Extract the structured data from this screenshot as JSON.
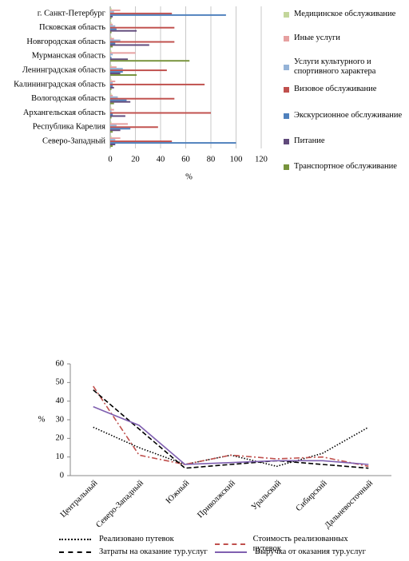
{
  "chart_data": [
    {
      "type": "hbar",
      "xlabel": "%",
      "categories": [
        "г. Санкт-Петербург",
        "Псковская область",
        "Новгородская область",
        "Мурманская область",
        "Ленинградская область",
        "Калининградская область",
        "Вологодская область",
        "Архангельская область",
        "Республика Карелия",
        "Северо-Западный"
      ],
      "series": [
        {
          "name": "Медицинское обслуживание",
          "color": "#c3d69b",
          "values": [
            1,
            1,
            1,
            1,
            1,
            1,
            1,
            1,
            1,
            1
          ]
        },
        {
          "name": "Иные услуги",
          "color": "#e6a0a0",
          "values": [
            8,
            2,
            3,
            20,
            5,
            4,
            2,
            3,
            14,
            8
          ]
        },
        {
          "name": "Услуги культурного и спортивного характера",
          "color": "#95b3d7",
          "values": [
            3,
            4,
            8,
            2,
            10,
            2,
            6,
            1,
            5,
            4
          ]
        },
        {
          "name": "Визовое обслуживание",
          "color": "#c0504d",
          "values": [
            49,
            51,
            51,
            0,
            45,
            75,
            51,
            80,
            38,
            49
          ]
        },
        {
          "name": "Экскурсионное обслуживание",
          "color": "#4f81bd",
          "values": [
            92,
            5,
            4,
            1,
            10,
            2,
            13,
            2,
            16,
            100
          ]
        },
        {
          "name": "Питание",
          "color": "#604a7b",
          "values": [
            2,
            21,
            31,
            14,
            8,
            3,
            16,
            12,
            8,
            4
          ]
        },
        {
          "name": "Транспортное обслуживание",
          "color": "#77933c",
          "values": [
            1,
            1,
            2,
            63,
            21,
            1,
            3,
            1,
            2,
            2
          ]
        }
      ],
      "xlim": [
        0,
        120
      ],
      "xticks": [
        0,
        20,
        40,
        60,
        80,
        100,
        120
      ],
      "grid": true
    },
    {
      "type": "line",
      "ylabel": "%",
      "categories": [
        "Центральный",
        "Северо-Западный",
        "Южный",
        "Приволжский",
        "Уральский",
        "Сибирский",
        "Дальневосточный"
      ],
      "series": [
        {
          "name": "Реализовано путевок",
          "color": "#000000",
          "dash": "dotted",
          "values": [
            26,
            15,
            6,
            11,
            5,
            12,
            26
          ]
        },
        {
          "name": "Стоимость реализованных путевок",
          "color": "#c0504d",
          "dash": "dashdot",
          "values": [
            48,
            11,
            6,
            11,
            9,
            10,
            5
          ]
        },
        {
          "name": "Затраты на оказание тур.услуг",
          "color": "#000000",
          "dash": "dashed",
          "values": [
            46,
            25,
            4,
            6,
            8,
            6,
            4
          ]
        },
        {
          "name": "Выручка от оказания тур.услуг",
          "color": "#7f5fb0",
          "dash": "solid",
          "values": [
            37,
            27,
            6,
            7,
            8,
            8,
            6
          ]
        }
      ],
      "ylim": [
        0,
        60
      ],
      "yticks": [
        0,
        10,
        20,
        30,
        40,
        50,
        60
      ],
      "grid": false
    }
  ]
}
